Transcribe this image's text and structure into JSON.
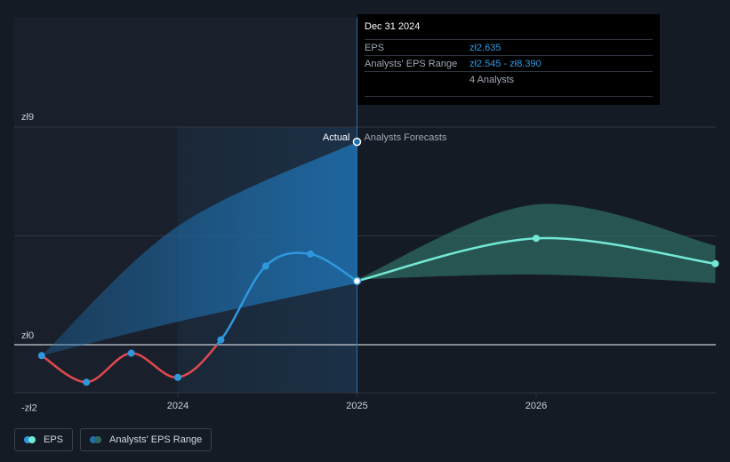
{
  "chart_data": {
    "type": "line",
    "currency_prefix": "zł",
    "y_ticks": [
      {
        "value": 9,
        "label": "zł9"
      },
      {
        "value": 0,
        "label": "zł0"
      },
      {
        "value": -2,
        "label": "-zł2"
      }
    ],
    "x_ticks": [
      {
        "value": 2024.0,
        "label": "2024"
      },
      {
        "value": 2025.0,
        "label": "2025"
      },
      {
        "value": 2026.0,
        "label": "2026"
      }
    ],
    "ylim": [
      -2,
      9
    ],
    "xlim": [
      2023.08,
      2027.0
    ],
    "actual_label": "Actual",
    "forecast_label": "Analysts Forecasts",
    "divider_x": 2025.0,
    "highlight_start_x": 2024.0,
    "series": [
      {
        "name": "EPS",
        "color_positive": "#2f98dd",
        "color_negative": "#e0484f",
        "points": [
          {
            "x": 2023.24,
            "y": -0.45
          },
          {
            "x": 2023.49,
            "y": -1.55
          },
          {
            "x": 2023.74,
            "y": -0.35
          },
          {
            "x": 2024.0,
            "y": -1.35
          },
          {
            "x": 2024.24,
            "y": 0.2
          },
          {
            "x": 2024.49,
            "y": 3.25
          },
          {
            "x": 2024.74,
            "y": 3.75
          },
          {
            "x": 2025.0,
            "y": 2.635
          }
        ]
      },
      {
        "name": "EPS Forecast",
        "color": "#74e8d6",
        "points": [
          {
            "x": 2025.0,
            "y": 2.635
          },
          {
            "x": 2026.0,
            "y": 4.4
          },
          {
            "x": 2027.0,
            "y": 3.35
          }
        ]
      }
    ],
    "range_actual": {
      "upper": [
        {
          "x": 2023.24,
          "y": -0.45
        },
        {
          "x": 2024.0,
          "y": 4.9
        },
        {
          "x": 2025.0,
          "y": 8.39
        }
      ],
      "lower": [
        {
          "x": 2023.24,
          "y": -0.45
        },
        {
          "x": 2024.0,
          "y": 0.95
        },
        {
          "x": 2025.0,
          "y": 2.545
        }
      ]
    },
    "range_forecast": {
      "upper": [
        {
          "x": 2025.0,
          "y": 2.7
        },
        {
          "x": 2026.0,
          "y": 5.8
        },
        {
          "x": 2027.0,
          "y": 4.1
        }
      ],
      "lower": [
        {
          "x": 2025.0,
          "y": 2.7
        },
        {
          "x": 2026.0,
          "y": 2.9
        },
        {
          "x": 2027.0,
          "y": 2.55
        }
      ]
    },
    "colors": {
      "range_actual_fill": "#1f6fae",
      "range_forecast_fill": "#2e6a62",
      "grid": "#2e3540",
      "zero_line": "#c8ccd2",
      "axis_text": "#c9ced6"
    }
  },
  "tooltip": {
    "date": "Dec 31 2024",
    "eps_label": "EPS",
    "eps_value": "zł2.635",
    "range_label": "Analysts' EPS Range",
    "range_value": "zł2.545 - zł8.390",
    "analysts": "4 Analysts"
  },
  "legend": {
    "eps": "EPS",
    "range": "Analysts' EPS Range"
  }
}
